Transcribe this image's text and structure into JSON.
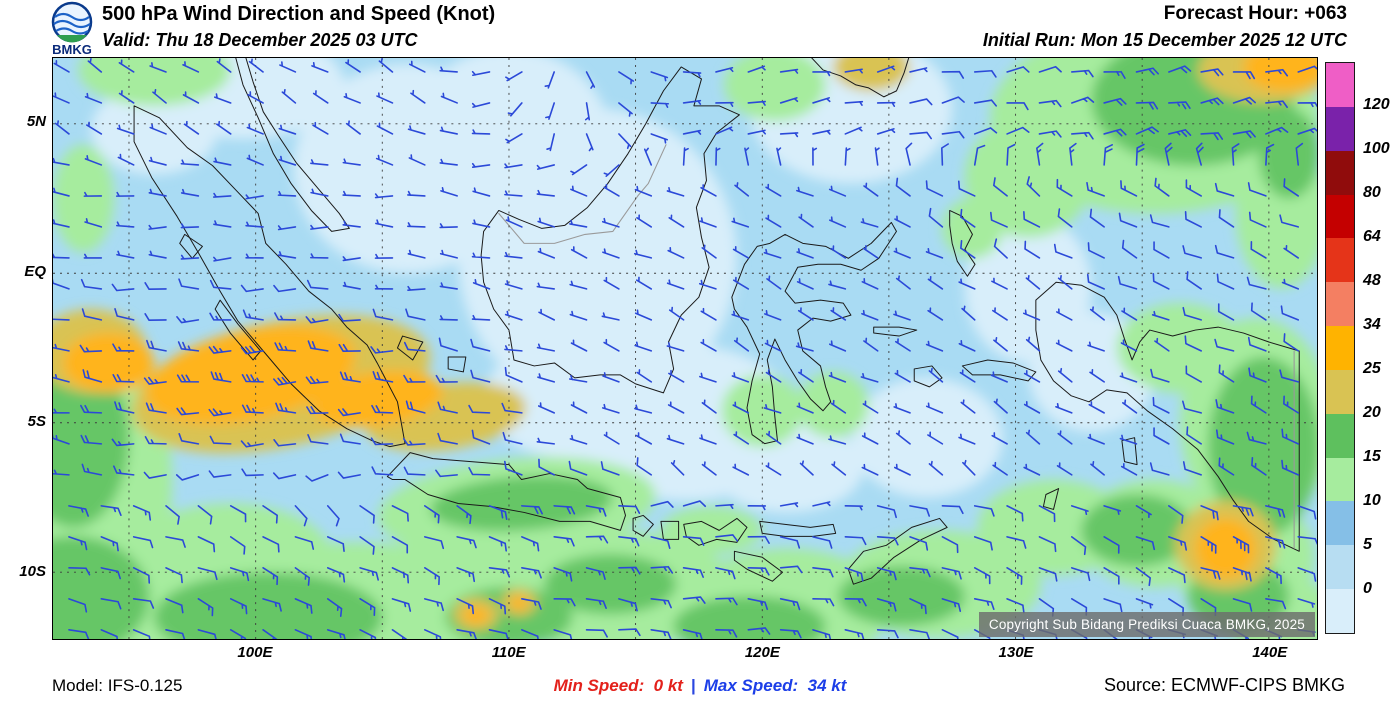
{
  "header": {
    "logo_label": "BMKG",
    "title": "500 hPa Wind Direction and Speed (Knot)",
    "valid": "Valid: Thu 18 December 2025 03 UTC",
    "forecast_hour": "Forecast Hour: +063",
    "initial_run": "Initial Run: Mon 15 December 2025 12 UTC"
  },
  "map": {
    "lat_ticks": [
      {
        "label": "5N",
        "value": 5
      },
      {
        "label": "EQ",
        "value": 0
      },
      {
        "label": "5S",
        "value": -5
      },
      {
        "label": "10S",
        "value": -10
      }
    ],
    "lon_ticks": [
      {
        "label": "100E",
        "value": 100
      },
      {
        "label": "110E",
        "value": 110
      },
      {
        "label": "120E",
        "value": 120
      },
      {
        "label": "130E",
        "value": 130
      },
      {
        "label": "140E",
        "value": 140
      }
    ],
    "extent": {
      "lon_min": 92.0,
      "lon_max": 141.9,
      "lat_min": -12.3,
      "lat_max": 7.2
    },
    "copyright": "Copyright Sub Bidang Prediksi Cuaca BMKG, 2025"
  },
  "colorbar": {
    "tick_labels": [
      "120",
      "100",
      "80",
      "64",
      "48",
      "34",
      "25",
      "20",
      "15",
      "10",
      "5",
      "0"
    ],
    "segments_top_to_bottom": [
      "#ef5ec6",
      "#7a22aa",
      "#900c0c",
      "#c40000",
      "#e53419",
      "#f47f62",
      "#ffb300",
      "#d9c353",
      "#5ec05e",
      "#a6ec9e",
      "#85bfe7",
      "#b7ddf2",
      "#d9eefa"
    ]
  },
  "shade_palette": {
    "base": "#a9dbf3",
    "s0": "#d8eefa",
    "s10": "#a6ec9e",
    "s15": "#66c666",
    "s20": "#d9c353",
    "s25": "#ffb41e"
  },
  "wind": {
    "barb_color": "#2b49d8",
    "min_speed_kt": 0,
    "max_speed_kt": 34
  },
  "footer": {
    "model": "Model: IFS-0.125",
    "min_speed": "Min Speed:  0 kt",
    "divider": "|",
    "max_speed": "Max Speed:  34 kt",
    "source": "Source: ECMWF-CIPS BMKG"
  }
}
